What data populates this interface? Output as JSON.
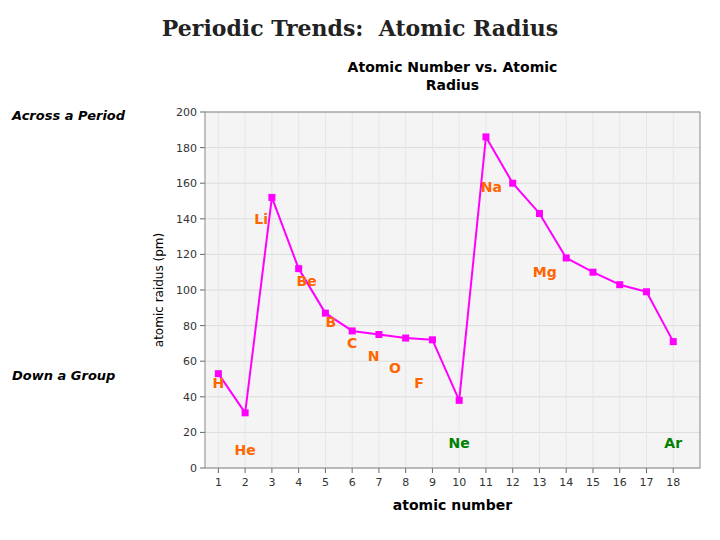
{
  "chart_data": {
    "type": "line",
    "title": "Periodic Trends:  Atomic Radius",
    "subtitle": [
      "Atomic Number vs. Atomic",
      "Radius"
    ],
    "x_label": "atomic number",
    "y_label": "atomic raidus (pm)",
    "x": [
      1,
      2,
      3,
      4,
      5,
      6,
      7,
      8,
      9,
      10,
      11,
      12,
      13,
      14,
      15,
      16,
      17,
      18
    ],
    "values": [
      53,
      31,
      152,
      112,
      87,
      77,
      75,
      73,
      72,
      38,
      186,
      160,
      143,
      118,
      110,
      103,
      99,
      71
    ],
    "color": "#ff00ff",
    "marker": "square",
    "xlim": [
      0.5,
      19
    ],
    "ylim": [
      0,
      200
    ],
    "xticks": [
      1,
      2,
      3,
      4,
      5,
      6,
      7,
      8,
      9,
      10,
      11,
      12,
      13,
      14,
      15,
      16,
      17,
      18
    ],
    "yticks": [
      0,
      20,
      40,
      60,
      80,
      100,
      120,
      140,
      160,
      180,
      200
    ],
    "grid": true,
    "annotations": [
      {
        "text": "Li",
        "x": 2.6,
        "y": 140,
        "color": "#ff6600"
      },
      {
        "text": "Be",
        "x": 4.3,
        "y": 105,
        "color": "#ff6600"
      },
      {
        "text": "B",
        "x": 5.2,
        "y": 82,
        "color": "#ff6600"
      },
      {
        "text": "C",
        "x": 6.0,
        "y": 70,
        "color": "#ff6600"
      },
      {
        "text": "N",
        "x": 6.8,
        "y": 63,
        "color": "#ff6600"
      },
      {
        "text": "O",
        "x": 7.6,
        "y": 56,
        "color": "#ff6600"
      },
      {
        "text": "F",
        "x": 8.5,
        "y": 48,
        "color": "#ff6600"
      },
      {
        "text": "H",
        "x": 1.0,
        "y": 48,
        "color": "#ff6600"
      },
      {
        "text": "He",
        "x": 2.0,
        "y": 10,
        "color": "#ff6600"
      },
      {
        "text": "Ne",
        "x": 10.0,
        "y": 14,
        "color": "#008000"
      },
      {
        "text": "Na",
        "x": 11.2,
        "y": 158,
        "color": "#ff6600"
      },
      {
        "text": "Mg",
        "x": 13.2,
        "y": 110,
        "color": "#ff6600"
      },
      {
        "text": "Ar",
        "x": 18.0,
        "y": 14,
        "color": "#008000"
      }
    ],
    "notes": [
      "Across a Period",
      "Down a Group"
    ]
  }
}
